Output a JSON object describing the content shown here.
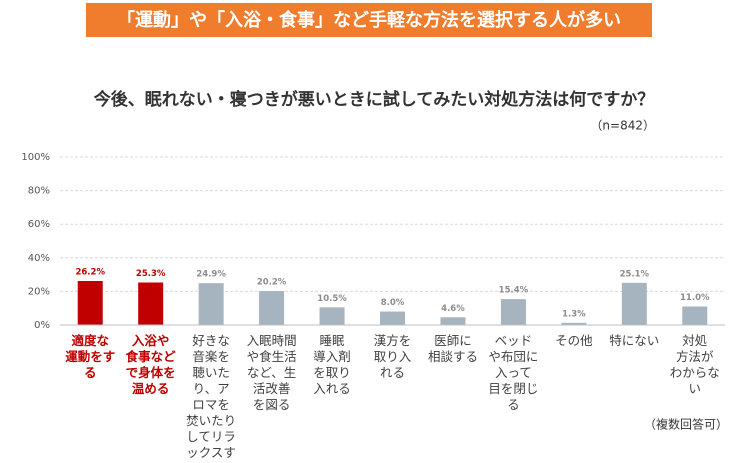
{
  "chart_data": {
    "type": "bar",
    "banner": "「運動」や「入浴・食事」など手軽な方法を選択する人が多い",
    "title": "今後、眠れない・寝つきが悪いときに試してみたい対処方法は何ですか？",
    "subtitle": "（n=842）",
    "note": "（複数回答可）",
    "categories": [
      "適度な\n運動をする",
      "入浴や\n食事など\nで身体を\n温める",
      "好きな\n音楽を\n聴いた\nり、ア\nロマを\n焚いたり\nしてリラ\nックスする",
      "入眠時間\nや食生活\nなど、生\n活改善\nを図る",
      "睡眠\n導入剤\nを取り\n入れる",
      "漢方を\n取り入\nれる",
      "医師に\n相談する",
      "ベッド\nや布団に\n入って\n目を閉じる",
      "その他",
      "特にない",
      "対処\n方法が\nわからない"
    ],
    "values": [
      26.2,
      25.3,
      24.9,
      20.2,
      10.5,
      8.0,
      4.6,
      15.4,
      1.3,
      25.1,
      11.0
    ],
    "value_labels": [
      "26.2%",
      "25.3%",
      "24.9%",
      "20.2%",
      "10.5%",
      "8.0%",
      "4.6%",
      "15.4%",
      "1.3%",
      "25.1%",
      "11.0%"
    ],
    "colors": [
      "#c00000",
      "#c00000",
      "#a5b4bf",
      "#a5b4bf",
      "#a5b4bf",
      "#a5b4bf",
      "#a5b4bf",
      "#a5b4bf",
      "#a5b4bf",
      "#a5b4bf",
      "#a5b4bf"
    ],
    "label_colors": [
      "#c00000",
      "#c00000",
      "#404040",
      "#404040",
      "#404040",
      "#404040",
      "#404040",
      "#404040",
      "#404040",
      "#404040",
      "#404040"
    ],
    "ylim": [
      0,
      100
    ],
    "yticks": [
      {
        "value": 0,
        "label": "0%"
      },
      {
        "value": 20,
        "label": "20%"
      },
      {
        "value": 40,
        "label": "40%"
      },
      {
        "value": 60,
        "label": "60%"
      },
      {
        "value": 80,
        "label": "80%"
      },
      {
        "value": 100,
        "label": "100%"
      }
    ],
    "grid": true
  }
}
